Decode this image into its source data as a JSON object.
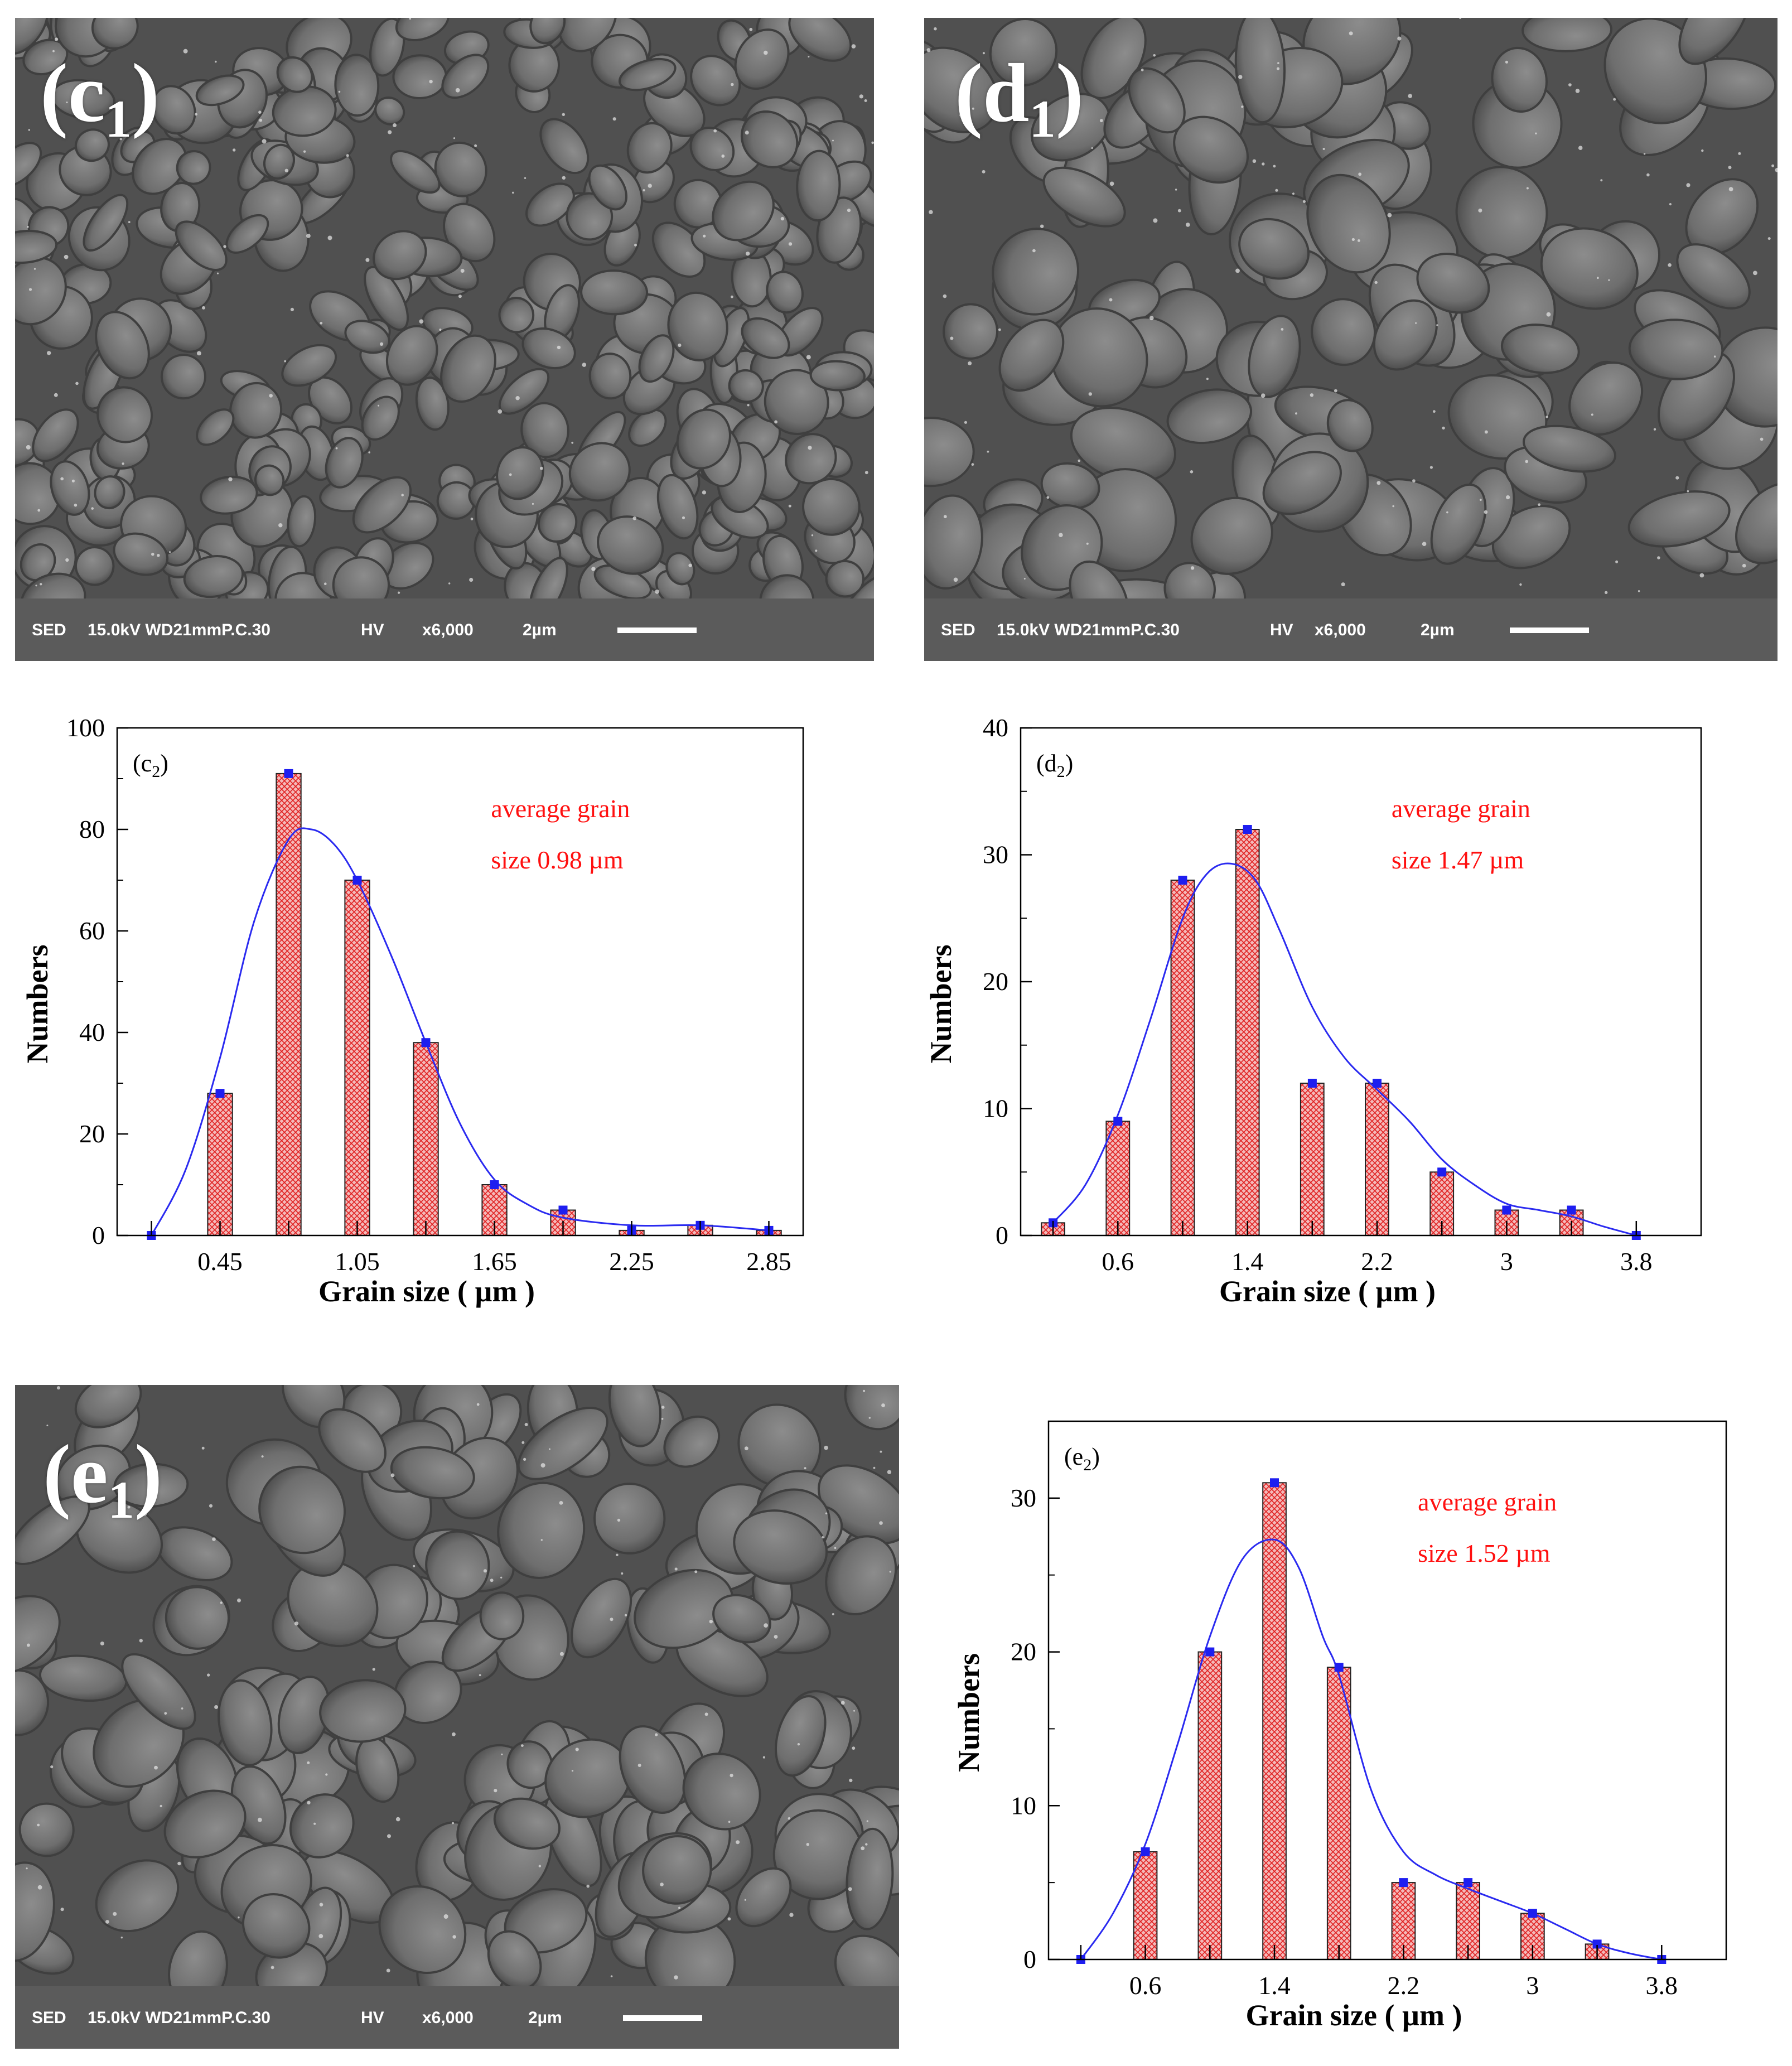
{
  "colors": {
    "bar_fill": "#f4b9b9",
    "bar_hatch": "#e02020",
    "marker": "#1e1ef0",
    "curve": "#2a2af0",
    "annotation": "#ff1010"
  },
  "sem_images": [
    {
      "id": "c",
      "label_letter": "(c",
      "label_sub": "1",
      "label_close": ")",
      "info": {
        "detector": "SED",
        "details": "15.0kV WD21mmP.C.30",
        "mode": "HV",
        "magnification": "x6,000",
        "scale": "2µm"
      }
    },
    {
      "id": "d",
      "label_letter": "(d",
      "label_sub": "1",
      "label_close": ")",
      "info": {
        "detector": "SED",
        "details": "15.0kV WD21mmP.C.30",
        "mode": "HV",
        "magnification": "x6,000",
        "scale": "2µm"
      }
    },
    {
      "id": "e",
      "label_letter": "(e",
      "label_sub": "1",
      "label_close": ")",
      "info": {
        "detector": "SED",
        "details": "15.0kV WD21mmP.C.30",
        "mode": "HV",
        "magnification": "x6,000",
        "scale": "2µm"
      }
    }
  ],
  "chart_data": [
    {
      "type": "bar",
      "panel": "(c2)",
      "panel_letter": "(c",
      "panel_sub": "2",
      "panel_close": ")",
      "xlabel": "Grain size ( µm )",
      "ylabel": "Numbers",
      "xlim": [
        0,
        3.0
      ],
      "ylim": [
        0,
        100
      ],
      "yticks": [
        0,
        20,
        40,
        60,
        80,
        100
      ],
      "xtick_labels": [
        "0.45",
        "1.05",
        "1.65",
        "2.25",
        "2.85"
      ],
      "xtick_values": [
        0.45,
        1.05,
        1.65,
        2.25,
        2.85
      ],
      "annotation": [
        "average grain",
        "size 0.98 µm"
      ],
      "x": [
        0.15,
        0.45,
        0.75,
        1.05,
        1.35,
        1.65,
        1.95,
        2.25,
        2.55,
        2.85
      ],
      "values": [
        0,
        28,
        91,
        70,
        38,
        10,
        5,
        1,
        2,
        1
      ],
      "fit_curve": [
        [
          0.15,
          0
        ],
        [
          0.3,
          13
        ],
        [
          0.45,
          35
        ],
        [
          0.6,
          62
        ],
        [
          0.75,
          78
        ],
        [
          0.85,
          80
        ],
        [
          0.95,
          77
        ],
        [
          1.05,
          70
        ],
        [
          1.2,
          55
        ],
        [
          1.35,
          38
        ],
        [
          1.5,
          22
        ],
        [
          1.65,
          11
        ],
        [
          1.8,
          6
        ],
        [
          1.95,
          3.5
        ],
        [
          2.25,
          2
        ],
        [
          2.55,
          2
        ],
        [
          2.85,
          1
        ]
      ],
      "grid": false,
      "legend": "none"
    },
    {
      "type": "bar",
      "panel": "(d2)",
      "panel_letter": "(d",
      "panel_sub": "2",
      "panel_close": ")",
      "xlabel": "Grain size ( µm )",
      "ylabel": "Numbers",
      "xlim": [
        0,
        4.2
      ],
      "ylim": [
        0,
        40
      ],
      "yticks": [
        0,
        10,
        20,
        30,
        40
      ],
      "xtick_labels": [
        "0.6",
        "1.4",
        "2.2",
        "3",
        "3.8"
      ],
      "xtick_values": [
        0.6,
        1.4,
        2.2,
        3.0,
        3.8
      ],
      "annotation": [
        "average grain",
        "size 1.47 µm"
      ],
      "x": [
        0.2,
        0.6,
        1.0,
        1.4,
        1.8,
        2.2,
        2.6,
        3.0,
        3.4,
        3.8
      ],
      "values": [
        1,
        9,
        28,
        32,
        12,
        12,
        5,
        2,
        2,
        0
      ],
      "fit_curve": [
        [
          0.2,
          1
        ],
        [
          0.4,
          4
        ],
        [
          0.6,
          9.5
        ],
        [
          0.8,
          17
        ],
        [
          1.0,
          25
        ],
        [
          1.15,
          28.5
        ],
        [
          1.3,
          29.3
        ],
        [
          1.45,
          28
        ],
        [
          1.6,
          24
        ],
        [
          1.8,
          18
        ],
        [
          2.0,
          14
        ],
        [
          2.2,
          11.5
        ],
        [
          2.4,
          9
        ],
        [
          2.6,
          6
        ],
        [
          2.8,
          4
        ],
        [
          3.0,
          2.5
        ],
        [
          3.2,
          2
        ],
        [
          3.4,
          1.5
        ],
        [
          3.6,
          0.7
        ],
        [
          3.8,
          0
        ]
      ],
      "grid": false,
      "legend": "none"
    },
    {
      "type": "bar",
      "panel": "(e2)",
      "panel_letter": "(e",
      "panel_sub": "2",
      "panel_close": ")",
      "xlabel": "Grain size ( µm )",
      "ylabel": "Numbers",
      "xlim": [
        0,
        4.2
      ],
      "ylim": [
        0,
        35
      ],
      "yticks": [
        0,
        10,
        20,
        30
      ],
      "xtick_labels": [
        "0.6",
        "1.4",
        "2.2",
        "3",
        "3.8"
      ],
      "xtick_values": [
        0.6,
        1.4,
        2.2,
        3.0,
        3.8
      ],
      "annotation": [
        "average grain",
        "size 1.52 µm"
      ],
      "x": [
        0.2,
        0.6,
        1.0,
        1.4,
        1.8,
        2.2,
        2.6,
        3.0,
        3.4,
        3.8
      ],
      "values": [
        0,
        7,
        20,
        31,
        19,
        5,
        5,
        3,
        1,
        0
      ],
      "fit_curve": [
        [
          0.2,
          0
        ],
        [
          0.4,
          3
        ],
        [
          0.6,
          7.5
        ],
        [
          0.8,
          14
        ],
        [
          1.0,
          21
        ],
        [
          1.2,
          26
        ],
        [
          1.4,
          27.3
        ],
        [
          1.55,
          25.5
        ],
        [
          1.7,
          21
        ],
        [
          1.8,
          18.5
        ],
        [
          2.0,
          11
        ],
        [
          2.2,
          7
        ],
        [
          2.4,
          5.5
        ],
        [
          2.6,
          4.6
        ],
        [
          2.8,
          3.8
        ],
        [
          3.0,
          3
        ],
        [
          3.2,
          2
        ],
        [
          3.4,
          1
        ],
        [
          3.6,
          0.4
        ],
        [
          3.8,
          0
        ]
      ],
      "grid": false,
      "legend": "none"
    }
  ]
}
